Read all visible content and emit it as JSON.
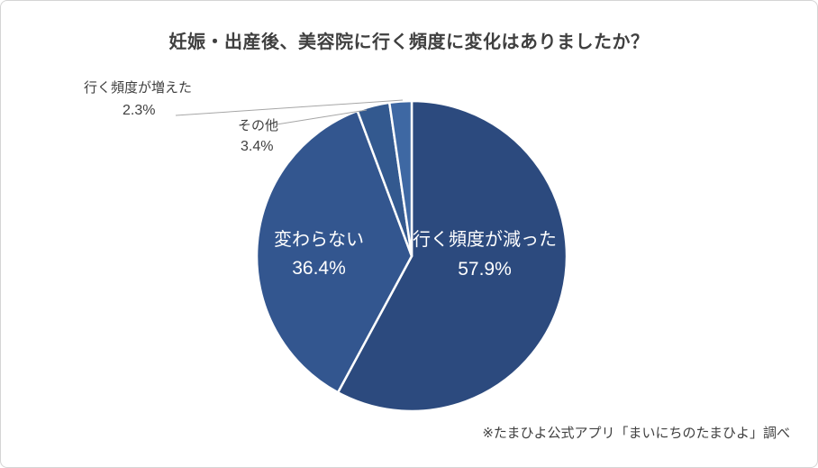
{
  "title": "妊娠・出産後、美容院に行く頻度に変化はありましたか？",
  "footer": "※たまひよ公式アプリ「まいにちのたまひよ」調べ",
  "chart_data": {
    "type": "pie",
    "title": "妊娠・出産後、美容院に行く頻度に変化はありましたか？",
    "source_note": "※たまひよ公式アプリ「まいにちのたまひよ」調べ",
    "unit": "%",
    "start_angle": "12-o'clock",
    "direction": "clockwise",
    "legend": "none",
    "categories": [
      "行く頻度が減った",
      "変わらない",
      "その他",
      "行く頻度が増えた"
    ],
    "values": [
      57.9,
      36.4,
      3.4,
      2.3
    ],
    "slices": [
      {
        "label": "行く頻度が減った",
        "value": 57.9,
        "pct_text": "57.9%",
        "color": "#2C4A7E",
        "label_placement": "inside"
      },
      {
        "label": "変わらない",
        "value": 36.4,
        "pct_text": "36.4%",
        "color": "#33568F",
        "label_placement": "inside"
      },
      {
        "label": "その他",
        "value": 3.4,
        "pct_text": "3.4%",
        "color": "#33598F",
        "label_placement": "outside"
      },
      {
        "label": "行く頻度が増えた",
        "value": 2.3,
        "pct_text": "2.3%",
        "color": "#3E68A3",
        "label_placement": "outside"
      }
    ],
    "colors": {
      "slice_border": "#FFFFFF",
      "inside_label_text": "#FFFFFF",
      "outside_label_text": "#404040",
      "title_text": "#3F3F3F",
      "leader_line": "#A6A6A6",
      "background": "#FFFFFF",
      "frame_border": "#D4D4D4"
    }
  }
}
